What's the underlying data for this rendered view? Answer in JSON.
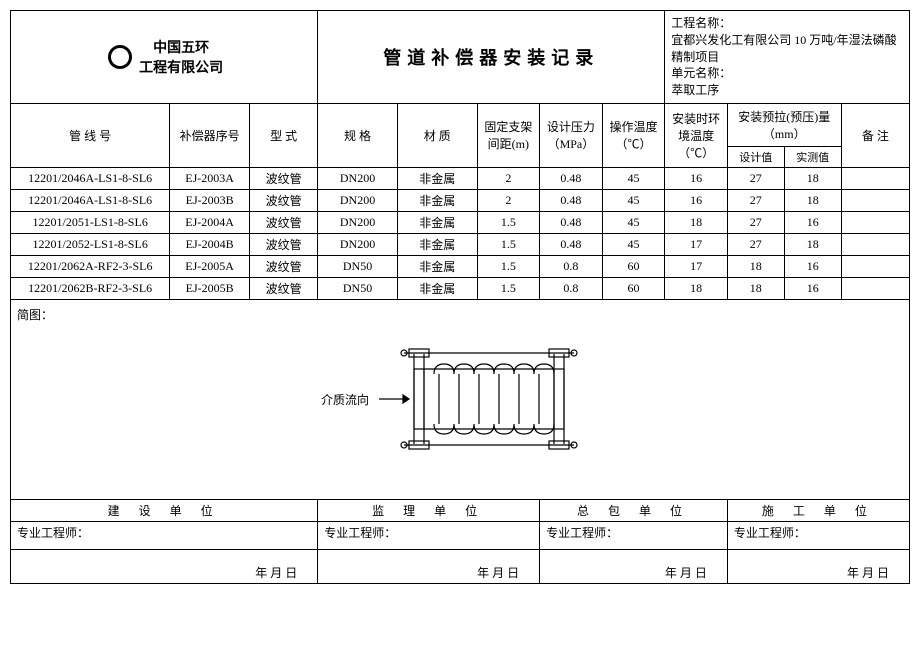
{
  "header": {
    "company_line1": "中国五环",
    "company_line2": "工程有限公司",
    "title": "管道补偿器安装记录",
    "proj_label": "工程名称：",
    "proj_name": "宜都兴发化工有限公司 10 万吨/年湿法磷酸精制项目",
    "unit_label": "单元名称：",
    "unit_name": "萃取工序"
  },
  "cols": {
    "pipe": "管 线 号",
    "comp": "补偿器序号",
    "type": "型  式",
    "spec": "规  格",
    "mat": "材  质",
    "dist": "固定支架间距(m)",
    "press": "设计压力（MPa）",
    "optemp": "操作温度（℃）",
    "insttemp": "安装时环境温度（℃）",
    "preload": "安装预拉(预压)量（mm）",
    "design": "设计值",
    "meas": "实测值",
    "remark": "备  注"
  },
  "rows": [
    {
      "pipe": "12201/2046A-LS1-8-SL6",
      "comp": "EJ-2003A",
      "type": "波纹管",
      "spec": "DN200",
      "mat": "非金属",
      "dist": "2",
      "press": "0.48",
      "optemp": "45",
      "insttemp": "16",
      "design": "27",
      "meas": "18",
      "remark": ""
    },
    {
      "pipe": "12201/2046A-LS1-8-SL6",
      "comp": "EJ-2003B",
      "type": "波纹管",
      "spec": "DN200",
      "mat": "非金属",
      "dist": "2",
      "press": "0.48",
      "optemp": "45",
      "insttemp": "16",
      "design": "27",
      "meas": "18",
      "remark": ""
    },
    {
      "pipe": "12201/2051-LS1-8-SL6",
      "comp": "EJ-2004A",
      "type": "波纹管",
      "spec": "DN200",
      "mat": "非金属",
      "dist": "1.5",
      "press": "0.48",
      "optemp": "45",
      "insttemp": "18",
      "design": "27",
      "meas": "16",
      "remark": ""
    },
    {
      "pipe": "12201/2052-LS1-8-SL6",
      "comp": "EJ-2004B",
      "type": "波纹管",
      "spec": "DN200",
      "mat": "非金属",
      "dist": "1.5",
      "press": "0.48",
      "optemp": "45",
      "insttemp": "17",
      "design": "27",
      "meas": "18",
      "remark": ""
    },
    {
      "pipe": "12201/2062A-RF2-3-SL6",
      "comp": "EJ-2005A",
      "type": "波纹管",
      "spec": "DN50",
      "mat": "非金属",
      "dist": "1.5",
      "press": "0.8",
      "optemp": "60",
      "insttemp": "17",
      "design": "18",
      "meas": "16",
      "remark": ""
    },
    {
      "pipe": "12201/2062B-RF2-3-SL6",
      "comp": "EJ-2005B",
      "type": "波纹管",
      "spec": "DN50",
      "mat": "非金属",
      "dist": "1.5",
      "press": "0.8",
      "optemp": "60",
      "insttemp": "18",
      "design": "18",
      "meas": "16",
      "remark": ""
    }
  ],
  "diagram": {
    "label": "简图：",
    "flow": "介质流向"
  },
  "sig": {
    "h1": "建 设 单 位",
    "h2": "监 理 单 位",
    "h3": "总 包 单 位",
    "h4": "施 工 单 位",
    "eng": "专业工程师：",
    "date": "年    月    日"
  }
}
